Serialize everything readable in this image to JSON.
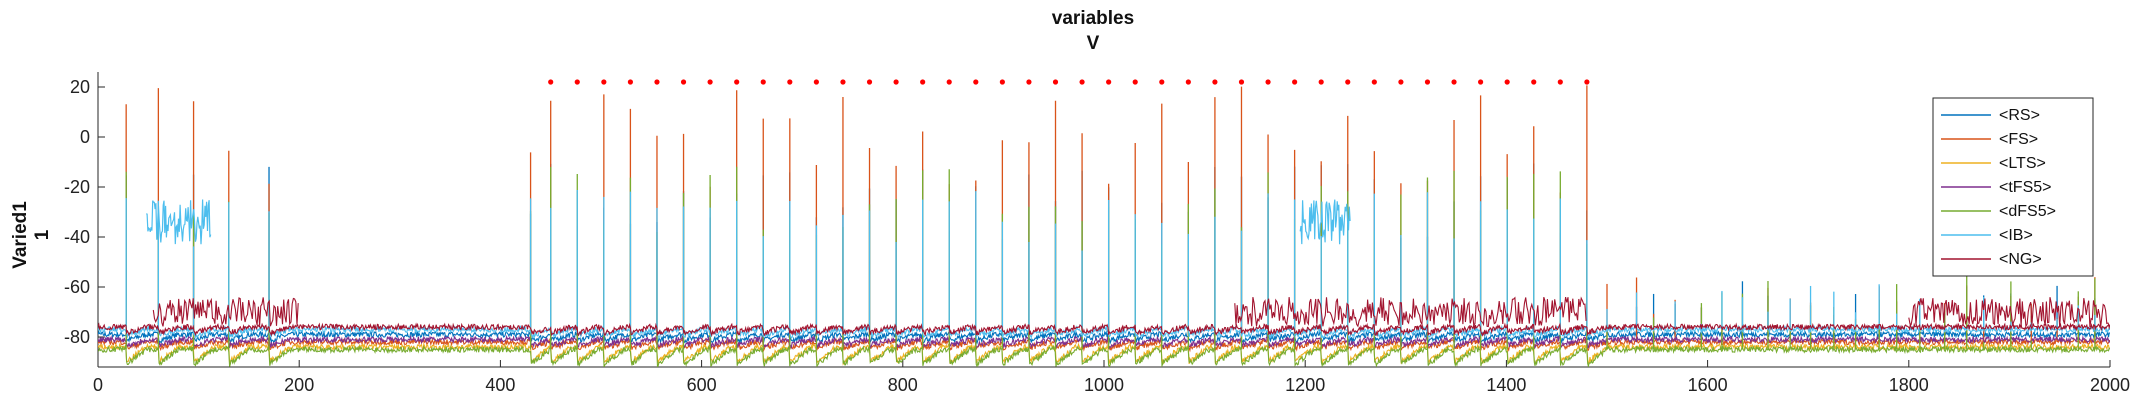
{
  "chart_data": {
    "type": "line",
    "title": "variables",
    "subtitle": "V",
    "ylabel": "Varied1",
    "ylabel2": "1",
    "xlabel": "",
    "xlim": [
      0,
      2000
    ],
    "ylim": [
      -92,
      26
    ],
    "xticks": [
      0,
      200,
      400,
      600,
      800,
      1000,
      1200,
      1400,
      1600,
      1800,
      2000
    ],
    "yticks": [
      20,
      0,
      -20,
      -40,
      -60,
      -80
    ],
    "grid": false,
    "legend_position": "top-right",
    "stimulus_markers": {
      "color": "#ff0000",
      "y": 22,
      "x_start": 450,
      "x_end": 1480,
      "count": 40
    },
    "series": [
      {
        "name": "<RS>",
        "color": "#0072bd",
        "baseline": -79,
        "spike_peak": -10
      },
      {
        "name": "<FS>",
        "color": "#d95319",
        "baseline": -82,
        "spike_peak": 22
      },
      {
        "name": "<LTS>",
        "color": "#edb120",
        "baseline": -84,
        "spike_peak": -50
      },
      {
        "name": "<tFS5>",
        "color": "#7e2f8e",
        "baseline": -81,
        "spike_peak": -76
      },
      {
        "name": "<dFS5>",
        "color": "#77ac30",
        "baseline": -85,
        "spike_peak": -10
      },
      {
        "name": "<IB>",
        "color": "#4dbeee",
        "baseline": -77,
        "spike_peak": -20
      },
      {
        "name": "<NG>",
        "color": "#a2142f",
        "baseline": -76,
        "spike_peak": -60
      }
    ]
  }
}
